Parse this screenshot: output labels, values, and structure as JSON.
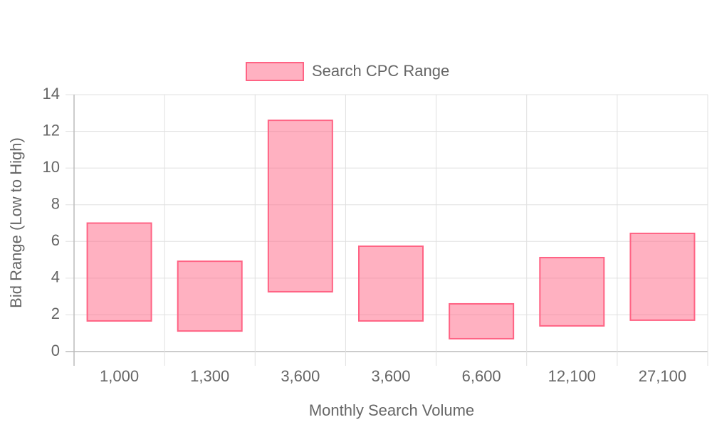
{
  "chart_data": {
    "type": "floating-bar",
    "x_label": "Monthly Search Volume",
    "y_label": "Bid Range (Low to High)",
    "categories": [
      "1,000",
      "1,300",
      "3,600",
      "3,600",
      "6,600",
      "12,100",
      "27,100"
    ],
    "series": [
      {
        "name": "Search CPC Range",
        "color": "#ff6384",
        "fill": "rgba(255,99,132,0.5)",
        "low": [
          1.67,
          1.12,
          3.26,
          1.67,
          0.7,
          1.4,
          1.71
        ],
        "high": [
          7.0,
          4.92,
          12.6,
          5.74,
          2.6,
          5.12,
          6.44
        ]
      }
    ],
    "ylim": [
      0,
      14
    ],
    "yticks": [
      0,
      2,
      4,
      6,
      8,
      10,
      12,
      14
    ],
    "grid": true,
    "legend": "top"
  }
}
